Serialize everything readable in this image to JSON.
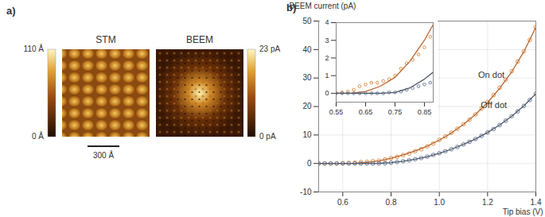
{
  "panel_a": {
    "label": "a)",
    "scale_bar": "300 Å",
    "images": [
      {
        "title": "STM",
        "colorbar": {
          "range": [
            0,
            110
          ],
          "ticks": [
            {
              "value": 110,
              "label": "110 Å"
            },
            {
              "value": 0,
              "label": "0 Å"
            }
          ]
        }
      },
      {
        "title": "BEEM",
        "colorbar": {
          "range": [
            0,
            23
          ],
          "ticks": [
            {
              "value": 23,
              "label": "23 pA"
            },
            {
              "value": 0,
              "label": "0 pA"
            }
          ]
        }
      }
    ]
  },
  "chart_data": [
    {
      "type": "scatter",
      "panel_label": "b)",
      "x_label": "Tip bias (V)",
      "y_label": "BEEM current (pA)",
      "xlim": [
        0.5,
        1.4
      ],
      "xticks": [
        0.6,
        0.8,
        {
          "value": 1.0,
          "label": "1.0"
        },
        1.2,
        1.4
      ],
      "ylim": [
        -10,
        50
      ],
      "yticks": [
        -10,
        0,
        10,
        20,
        30,
        40,
        50
      ],
      "grid": true,
      "series": [
        {
          "type": "scatter",
          "marker": "circle",
          "color": "#e0904a",
          "x": [
            0.5,
            0.525,
            0.55,
            0.575,
            0.6,
            0.625,
            0.65,
            0.675,
            0.7,
            0.725,
            0.75,
            0.775,
            0.8,
            0.825,
            0.85,
            0.875,
            0.9,
            0.925,
            0.95,
            0.975,
            1.0,
            1.025,
            1.05,
            1.075,
            1.1,
            1.125,
            1.15,
            1.175,
            1.2,
            1.225,
            1.25,
            1.275,
            1.3,
            1.325,
            1.35,
            1.375,
            1.4
          ],
          "values": [
            0,
            0,
            0,
            0,
            0.1,
            0.2,
            0.3,
            0.5,
            0.6,
            0.8,
            1.0,
            1.4,
            1.9,
            2.3,
            2.9,
            3.5,
            4.3,
            5.0,
            6.0,
            7.0,
            8.3,
            9.5,
            10.8,
            12.2,
            13.8,
            15.4,
            17.2,
            19.3,
            21.6,
            24.0,
            26.6,
            29.4,
            32.4,
            35.8,
            39.4,
            43.4,
            47.8
          ]
        },
        {
          "type": "line",
          "color": "#b8652e",
          "x": [
            0.5,
            0.55,
            0.6,
            0.65,
            0.7,
            0.75,
            0.8,
            0.85,
            0.9,
            0.95,
            1.0,
            1.05,
            1.1,
            1.15,
            1.2,
            1.25,
            1.3,
            1.35,
            1.4
          ],
          "values": [
            0,
            0,
            0,
            0.1,
            0.4,
            0.9,
            1.8,
            3.0,
            4.4,
            6.1,
            8.2,
            10.7,
            13.7,
            17.2,
            21.4,
            26.4,
            32.2,
            39.2,
            47.8
          ]
        },
        {
          "type": "scatter",
          "marker": "circle",
          "color": "#6f7f99",
          "x": [
            0.5,
            0.525,
            0.55,
            0.575,
            0.6,
            0.625,
            0.65,
            0.675,
            0.7,
            0.725,
            0.75,
            0.775,
            0.8,
            0.825,
            0.85,
            0.875,
            0.9,
            0.925,
            0.95,
            0.975,
            1.0,
            1.025,
            1.05,
            1.075,
            1.1,
            1.125,
            1.15,
            1.175,
            1.2,
            1.225,
            1.25,
            1.275,
            1.3,
            1.325,
            1.35,
            1.375,
            1.4
          ],
          "values": [
            0,
            0,
            0,
            0,
            0,
            0,
            0,
            0,
            0,
            0,
            0,
            0.1,
            0.3,
            0.5,
            0.8,
            1.1,
            1.5,
            1.9,
            2.4,
            3.0,
            3.6,
            4.3,
            5.0,
            5.8,
            6.7,
            7.6,
            8.6,
            9.7,
            10.9,
            12.1,
            13.5,
            15.0,
            16.6,
            18.3,
            20.2,
            22.3,
            24.5
          ]
        },
        {
          "type": "line",
          "color": "#4e586c",
          "x": [
            0.5,
            0.55,
            0.6,
            0.65,
            0.7,
            0.75,
            0.8,
            0.85,
            0.9,
            0.95,
            1.0,
            1.05,
            1.1,
            1.15,
            1.2,
            1.25,
            1.3,
            1.35,
            1.4
          ],
          "values": [
            0,
            0,
            0,
            0,
            0,
            0.05,
            0.3,
            0.8,
            1.5,
            2.4,
            3.6,
            5.0,
            6.7,
            8.6,
            10.9,
            13.5,
            16.6,
            20.2,
            24.5
          ]
        }
      ],
      "annotations": [
        {
          "text": "On dot",
          "x": 1.27,
          "y": 31
        },
        {
          "text": "Off dot",
          "x": 1.28,
          "y": 20.5
        }
      ]
    },
    {
      "type": "scatter",
      "xlim": [
        0.55,
        0.88
      ],
      "xticks": [
        0.55,
        0.65,
        0.75,
        0.85
      ],
      "ylim": [
        -0.5,
        4
      ],
      "yticks": [
        0,
        1,
        2,
        3,
        4
      ],
      "series": [
        {
          "type": "scatter",
          "marker": "circle",
          "color": "#e0904a",
          "x": [
            0.55,
            0.57,
            0.59,
            0.61,
            0.63,
            0.65,
            0.67,
            0.69,
            0.71,
            0.73,
            0.75,
            0.77,
            0.79,
            0.81,
            0.83,
            0.85,
            0.87
          ],
          "values": [
            0,
            0.05,
            0.1,
            0.2,
            0.4,
            0.5,
            0.6,
            0.6,
            0.7,
            0.8,
            1.0,
            1.4,
            1.7,
            1.9,
            2.2,
            2.6,
            3.2
          ]
        },
        {
          "type": "line",
          "color": "#b8652e",
          "x": [
            0.55,
            0.6,
            0.65,
            0.7,
            0.75,
            0.8,
            0.85,
            0.88
          ],
          "values": [
            0,
            0,
            0.1,
            0.4,
            0.9,
            1.8,
            3.0,
            3.9
          ]
        },
        {
          "type": "scatter",
          "marker": "circle",
          "color": "#6f7f99",
          "x": [
            0.55,
            0.57,
            0.59,
            0.61,
            0.63,
            0.65,
            0.67,
            0.69,
            0.71,
            0.73,
            0.75,
            0.77,
            0.79,
            0.81,
            0.83,
            0.85,
            0.87
          ],
          "values": [
            0,
            0,
            0,
            0,
            0,
            0,
            0,
            0,
            0,
            0.05,
            0.05,
            0.1,
            0.2,
            0.3,
            0.4,
            0.5,
            0.6
          ]
        },
        {
          "type": "line",
          "color": "#4e586c",
          "x": [
            0.55,
            0.6,
            0.65,
            0.7,
            0.75,
            0.8,
            0.85,
            0.88
          ],
          "values": [
            0,
            0,
            0,
            0,
            0.05,
            0.3,
            0.8,
            1.2
          ]
        }
      ]
    }
  ]
}
